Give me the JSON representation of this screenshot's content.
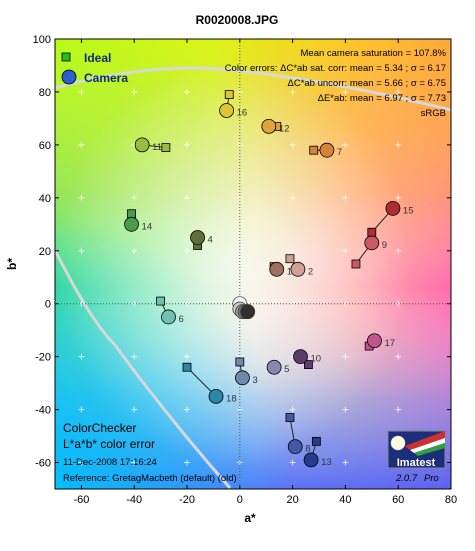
{
  "chart_data": {
    "type": "scatter",
    "title": "R0020008.JPG",
    "xlabel": "a*",
    "ylabel": "b*",
    "xlim": [
      -70,
      80
    ],
    "ylim": [
      -70,
      100
    ],
    "xticks": [
      -60,
      -40,
      -20,
      0,
      20,
      40,
      60,
      80
    ],
    "yticks": [
      -60,
      -40,
      -20,
      0,
      20,
      40,
      60,
      80,
      100
    ],
    "legend": {
      "placement": "top-left",
      "items": [
        "Ideal",
        "Camera"
      ]
    },
    "info_lines": [
      "Mean camera saturation = 107.8%",
      "Color errors: ΔC*ab sat. corr:  mean = 5.34 ;  σ = 6.17",
      "ΔC*ab uncorr:  mean = 5.66 ;  σ = 6.75",
      "ΔE*ab:  mean = 6.97 ;  σ = 7.73",
      "sRGB"
    ],
    "footer_lines": [
      "ColorChecker",
      "L*a*b* color error",
      "11-Dec-2008 17:16:24",
      "Reference:  GretagMacbeth (default) (old)"
    ],
    "logo": {
      "name": "Imatest",
      "version": "2.0.7",
      "edition": "Pro"
    },
    "patches": [
      {
        "id": "1",
        "ideal": [
          13,
          14
        ],
        "camera": [
          14,
          13
        ],
        "color": "#a0705c"
      },
      {
        "id": "2",
        "ideal": [
          19,
          17
        ],
        "camera": [
          22,
          13
        ],
        "color": "#d0a090"
      },
      {
        "id": "3",
        "ideal": [
          0,
          -22
        ],
        "camera": [
          1,
          -28
        ],
        "color": "#6e8aa8"
      },
      {
        "id": "4",
        "ideal": [
          -16,
          22
        ],
        "camera": [
          -16,
          25
        ],
        "color": "#60703a"
      },
      {
        "id": "5",
        "ideal": [
          13,
          -24
        ],
        "camera": [
          13,
          -24
        ],
        "color": "#8a86b0"
      },
      {
        "id": "6",
        "ideal": [
          -30,
          1
        ],
        "camera": [
          -27,
          -5
        ],
        "color": "#6cc4b0"
      },
      {
        "id": "7",
        "ideal": [
          28,
          58
        ],
        "camera": [
          33,
          58
        ],
        "color": "#d8833a"
      },
      {
        "id": "8",
        "ideal": [
          19,
          -43
        ],
        "camera": [
          21,
          -54
        ],
        "color": "#4458a8"
      },
      {
        "id": "9",
        "ideal": [
          44,
          15
        ],
        "camera": [
          50,
          23
        ],
        "color": "#c85a64"
      },
      {
        "id": "10",
        "ideal": [
          26,
          -23
        ],
        "camera": [
          23,
          -20
        ],
        "color": "#5c3c6c"
      },
      {
        "id": "11",
        "ideal": [
          -28,
          59
        ],
        "camera": [
          -37,
          60
        ],
        "color": "#9cbc40"
      },
      {
        "id": "12",
        "ideal": [
          14,
          67
        ],
        "camera": [
          11,
          67
        ],
        "color": "#e0a43a"
      },
      {
        "id": "13",
        "ideal": [
          29,
          -52
        ],
        "camera": [
          27,
          -59
        ],
        "color": "#243c8c"
      },
      {
        "id": "14",
        "ideal": [
          -41,
          34
        ],
        "camera": [
          -41,
          30
        ],
        "color": "#489c4c"
      },
      {
        "id": "15",
        "ideal": [
          50,
          27
        ],
        "camera": [
          58,
          36
        ],
        "color": "#b02c34"
      },
      {
        "id": "16",
        "ideal": [
          -4,
          79
        ],
        "camera": [
          -5,
          73
        ],
        "color": "#e0c430"
      },
      {
        "id": "17",
        "ideal": [
          49,
          -16
        ],
        "camera": [
          51,
          -14
        ],
        "color": "#c4548c"
      },
      {
        "id": "18",
        "ideal": [
          -20,
          -24
        ],
        "camera": [
          -9,
          -35
        ],
        "color": "#2c88a8"
      }
    ],
    "neutrals": [
      {
        "a": 0,
        "b": 0,
        "color": "#f4f4f4"
      },
      {
        "a": 0,
        "b": -2,
        "color": "#c8c8c8"
      },
      {
        "a": 1,
        "b": -3,
        "color": "#a0a0a0"
      },
      {
        "a": 2,
        "b": -3,
        "color": "#787878"
      },
      {
        "a": 3,
        "b": -3,
        "color": "#505050"
      },
      {
        "a": 3,
        "b": -3,
        "color": "#303030"
      }
    ]
  }
}
